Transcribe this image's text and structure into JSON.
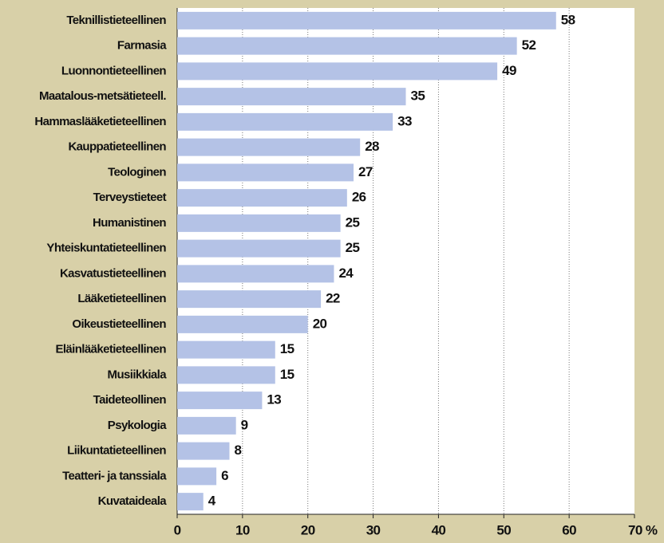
{
  "chart_data": {
    "type": "barh",
    "categories": [
      "Teknillistieteellinen",
      "Farmasia",
      "Luonnontieteellinen",
      "Maatalous-metsätieteell.",
      "Hammaslääketieteellinen",
      "Kauppatieteellinen",
      "Teologinen",
      "Terveystieteet",
      "Humanistinen",
      "Yhteiskuntatieteellinen",
      "Kasvatustieteellinen",
      "Lääketieteellinen",
      "Oikeustieteellinen",
      "Eläinlääketieteellinen",
      "Musiikkiala",
      "Taideteollinen",
      "Psykologia",
      "Liikuntatieteellinen",
      "Teatteri- ja tanssiala",
      "Kuvataideala"
    ],
    "values": [
      58,
      52,
      49,
      35,
      33,
      28,
      27,
      26,
      25,
      25,
      24,
      22,
      20,
      15,
      15,
      13,
      9,
      8,
      6,
      4
    ],
    "color": "#b4c2e6",
    "xlim": [
      0,
      70
    ],
    "xticks": [
      0,
      10,
      20,
      30,
      40,
      50,
      60,
      {
        "value": 70,
        "label": "70 %"
      }
    ],
    "grid": true
  }
}
